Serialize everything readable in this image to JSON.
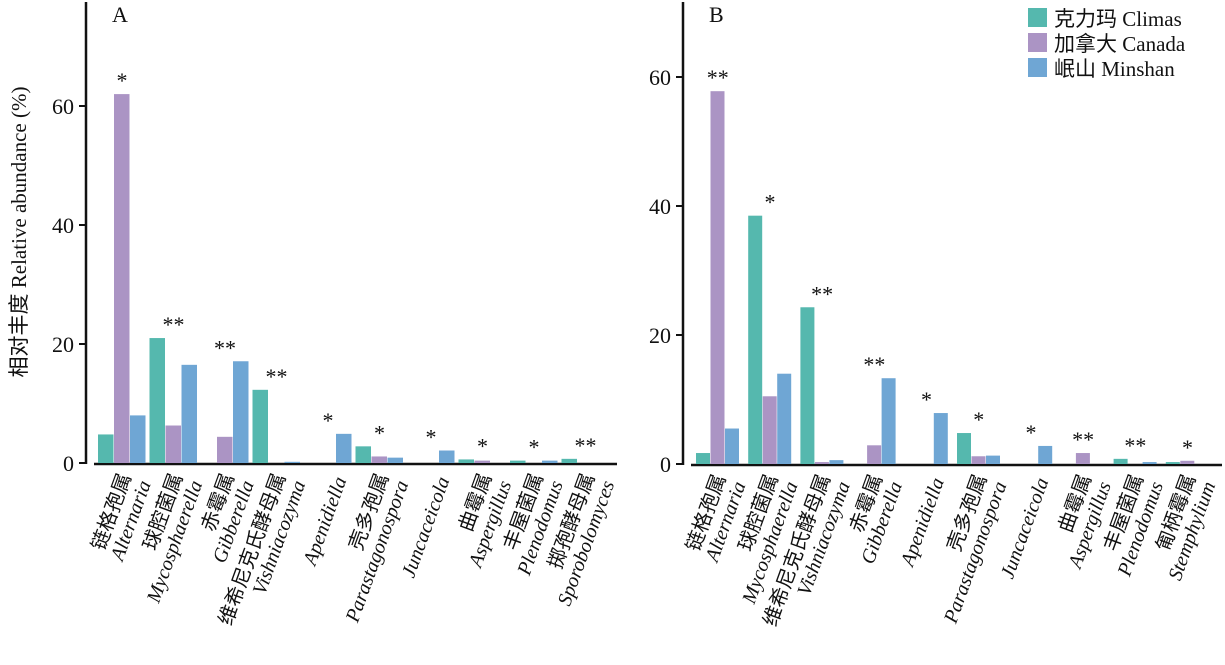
{
  "chart_data": [
    {
      "type": "bar",
      "panel_label": "A",
      "ylabel": "相对丰度 Relative abundance (%)",
      "yticks": [
        0,
        20,
        40,
        60
      ],
      "ylim": [
        0,
        78
      ],
      "grid": false,
      "legend": "top-right",
      "categories": [
        {
          "cn": "链格孢属",
          "latin": "Alternaria",
          "sig": "*"
        },
        {
          "cn": "球腔菌属",
          "latin": "Mycosphaerella",
          "sig": "**"
        },
        {
          "cn": "赤霉属",
          "latin": "Gibberella",
          "sig": "**"
        },
        {
          "cn": "维希尼克氏酵母属",
          "latin": "Vishniacozyma",
          "sig": "**"
        },
        {
          "cn": "",
          "latin": "Apenidiella",
          "sig": "*"
        },
        {
          "cn": "壳多孢属",
          "latin": "Parastagonospora",
          "sig": "*"
        },
        {
          "cn": "",
          "latin": "Juncaceicola",
          "sig": "*"
        },
        {
          "cn": "曲霉属",
          "latin": "Aspergillus",
          "sig": "*"
        },
        {
          "cn": "丰屋菌属",
          "latin": "Plenodomus",
          "sig": "*"
        },
        {
          "cn": "掷孢酵母属",
          "latin": "Sporobolomyces",
          "sig": "**"
        }
      ],
      "series": [
        {
          "name": "克力玛 Climas",
          "color": "#55b8ae",
          "values": [
            4.8,
            21.0,
            0,
            12.3,
            0,
            2.8,
            0,
            0.6,
            0.4,
            0.7
          ]
        },
        {
          "name": "加拿大 Canada",
          "color": "#ab94c4",
          "values": [
            62.0,
            6.3,
            4.4,
            0,
            0,
            1.1,
            0,
            0.4,
            0,
            0
          ]
        },
        {
          "name": "岷山 Minshan",
          "color": "#6fa6d4",
          "values": [
            8.0,
            16.5,
            17.1,
            0.2,
            4.9,
            0.9,
            2.1,
            0,
            0.4,
            0
          ]
        }
      ]
    },
    {
      "type": "bar",
      "panel_label": "B",
      "yticks": [
        0,
        20,
        40,
        60
      ],
      "ylim": [
        0,
        72
      ],
      "grid": false,
      "categories": [
        {
          "cn": "链格孢属",
          "latin": "Alternaria",
          "sig": "**"
        },
        {
          "cn": "球腔菌属",
          "latin": "Mycosphaerella",
          "sig": "*"
        },
        {
          "cn": "维希尼克氏酵母属",
          "latin": "Vishniacozyma",
          "sig": "**"
        },
        {
          "cn": "赤霉属",
          "latin": "Gibberella",
          "sig": "**"
        },
        {
          "cn": "",
          "latin": "Apenidiella",
          "sig": "*"
        },
        {
          "cn": "壳多孢属",
          "latin": "Parastagonospora",
          "sig": "*"
        },
        {
          "cn": "",
          "latin": "Juncaceicola",
          "sig": "*"
        },
        {
          "cn": "曲霉属",
          "latin": "Aspergillus",
          "sig": "**"
        },
        {
          "cn": "丰屋菌属",
          "latin": "Plenodomus",
          "sig": "**"
        },
        {
          "cn": "匍柄霉属",
          "latin": "Stemphylium",
          "sig": "*"
        }
      ],
      "series": [
        {
          "name": "克力玛 Climas",
          "color": "#55b8ae",
          "values": [
            1.7,
            38.5,
            24.3,
            0,
            0,
            4.8,
            0,
            0,
            0.8,
            0.3
          ]
        },
        {
          "name": "加拿大 Canada",
          "color": "#ab94c4",
          "values": [
            57.8,
            10.5,
            0.3,
            2.9,
            0,
            1.2,
            0,
            1.7,
            0,
            0.5
          ]
        },
        {
          "name": "岷山 Minshan",
          "color": "#6fa6d4",
          "values": [
            5.5,
            14.0,
            0.6,
            13.3,
            7.9,
            1.3,
            2.8,
            0,
            0.3,
            0
          ]
        }
      ]
    }
  ]
}
